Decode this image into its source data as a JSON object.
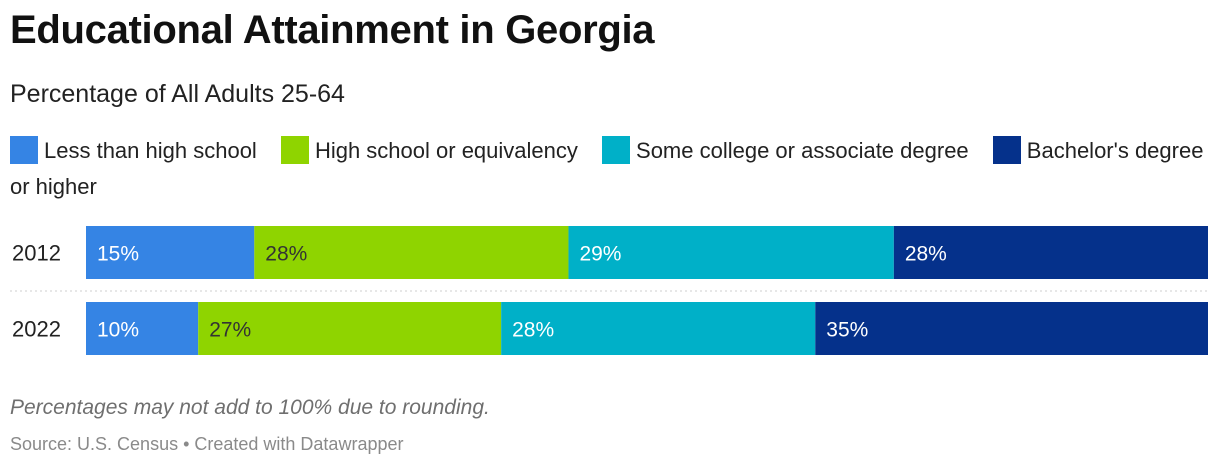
{
  "title": "Educational Attainment in Georgia",
  "subtitle": "Percentage of All Adults 25-64",
  "footnote": "Percentages may not add to 100% due to rounding.",
  "source": "Source: U.S. Census • Created with Datawrapper",
  "colors": {
    "less_than_high_school": "#3584e4",
    "high_school": "#8fd400",
    "some_college": "#00b0c8",
    "bachelors": "#05318b"
  },
  "chart_data": {
    "type": "bar",
    "orientation": "horizontal-stacked",
    "title": "Educational Attainment in Georgia",
    "subtitle": "Percentage of All Adults 25-64",
    "categories": [
      "2012",
      "2022"
    ],
    "series": [
      {
        "name": "Less than high school",
        "color": "#3584e4",
        "label_color": "#ffffff",
        "values": [
          15,
          10
        ]
      },
      {
        "name": "High school or equivalency",
        "color": "#8fd400",
        "label_color": "#333333",
        "values": [
          28,
          27
        ]
      },
      {
        "name": "Some college or associate degree",
        "color": "#00b0c8",
        "label_color": "#ffffff",
        "values": [
          29,
          28
        ]
      },
      {
        "name": "Bachelor's degree or higher",
        "color": "#05318b",
        "label_color": "#ffffff",
        "values": [
          28,
          35
        ]
      }
    ],
    "value_suffix": "%",
    "legend": "top",
    "grid": false
  }
}
